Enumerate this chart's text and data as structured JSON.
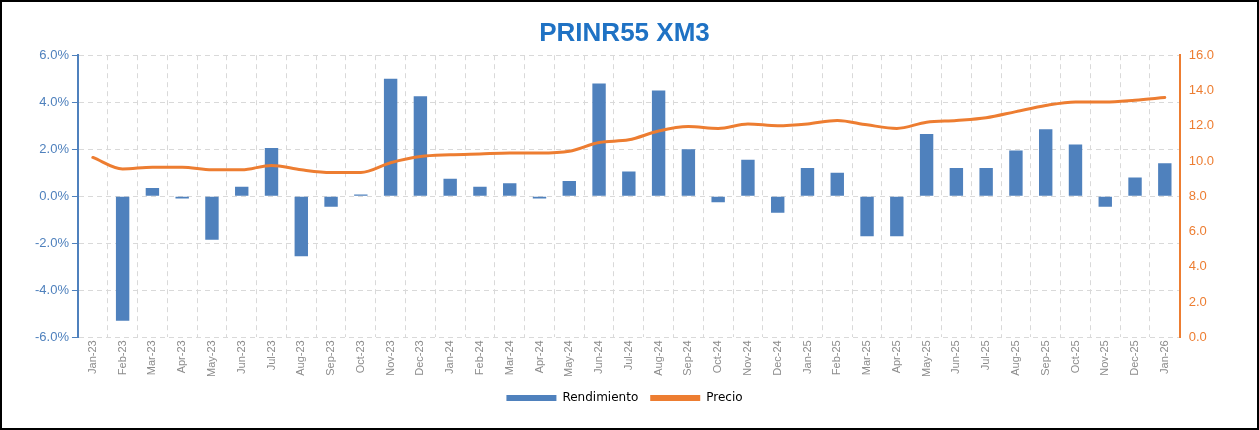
{
  "chart_data": {
    "type": "bar",
    "title": "PRINR55 XM3",
    "categories": [
      "Jan-23",
      "Feb-23",
      "Mar-23",
      "Apr-23",
      "May-23",
      "Jun-23",
      "Jul-23",
      "Aug-23",
      "Sep-23",
      "Oct-23",
      "Nov-23",
      "Dec-23",
      "Jan-24",
      "Feb-24",
      "Mar-24",
      "Apr-24",
      "May-24",
      "Jun-24",
      "Jul-24",
      "Aug-24",
      "Sep-24",
      "Oct-24",
      "Nov-24",
      "Dec-24",
      "Jan-25",
      "Feb-25",
      "Mar-25",
      "Apr-25",
      "May-25",
      "Jun-25",
      "Jul-25",
      "Aug-25",
      "Sep-25",
      "Oct-25",
      "Nov-25",
      "Dec-25",
      "Jan-26"
    ],
    "series": [
      {
        "name": "Rendimiento",
        "color": "#4f81bd",
        "values": [
          0,
          -5.3,
          0.35,
          -0.1,
          -1.85,
          0.4,
          2.05,
          -2.55,
          -0.45,
          0.07,
          5.0,
          4.25,
          0.75,
          0.4,
          0.55,
          -0.1,
          0.65,
          4.8,
          1.05,
          4.5,
          2.0,
          -0.25,
          1.55,
          -0.7,
          1.2,
          1.0,
          -1.7,
          -1.7,
          2.65,
          1.2,
          1.2,
          1.95,
          2.85,
          2.2,
          -0.45,
          0.8,
          1.4
        ]
      },
      {
        "name": "Precio",
        "type": "line",
        "axis": "y2",
        "color": "#ed7d31",
        "values": [
          10.2,
          9.55,
          9.65,
          9.65,
          9.5,
          9.5,
          9.75,
          9.5,
          9.35,
          9.35,
          9.9,
          10.25,
          10.35,
          10.4,
          10.45,
          10.45,
          10.55,
          11.05,
          11.2,
          11.7,
          11.95,
          11.85,
          12.1,
          12.0,
          12.1,
          12.3,
          12.05,
          11.85,
          12.2,
          12.3,
          12.45,
          12.8,
          13.15,
          13.35,
          13.35,
          13.45,
          13.6
        ]
      }
    ],
    "ylim": [
      -6,
      6
    ],
    "yticks": [
      {
        "value": -6,
        "label": "-6.0%"
      },
      {
        "value": -4,
        "label": "-4.0%"
      },
      {
        "value": -2,
        "label": "-2.0%"
      },
      {
        "value": 0,
        "label": "0.0%"
      },
      {
        "value": 2,
        "label": "2.0%"
      },
      {
        "value": 4,
        "label": "4.0%"
      },
      {
        "value": 6,
        "label": "6.0%"
      }
    ],
    "y2lim": [
      0,
      16
    ],
    "y2ticks": [
      {
        "value": 0,
        "label": "0.0"
      },
      {
        "value": 2,
        "label": "2.0"
      },
      {
        "value": 4,
        "label": "4.0"
      },
      {
        "value": 6,
        "label": "6.0"
      },
      {
        "value": 8,
        "label": "8.0"
      },
      {
        "value": 10,
        "label": "10.0"
      },
      {
        "value": 12,
        "label": "12.0"
      },
      {
        "value": 14,
        "label": "14.0"
      },
      {
        "value": 16,
        "label": "16.0"
      }
    ],
    "grid": true,
    "legend": "bottom",
    "marker": "none",
    "line_style": "solid"
  }
}
